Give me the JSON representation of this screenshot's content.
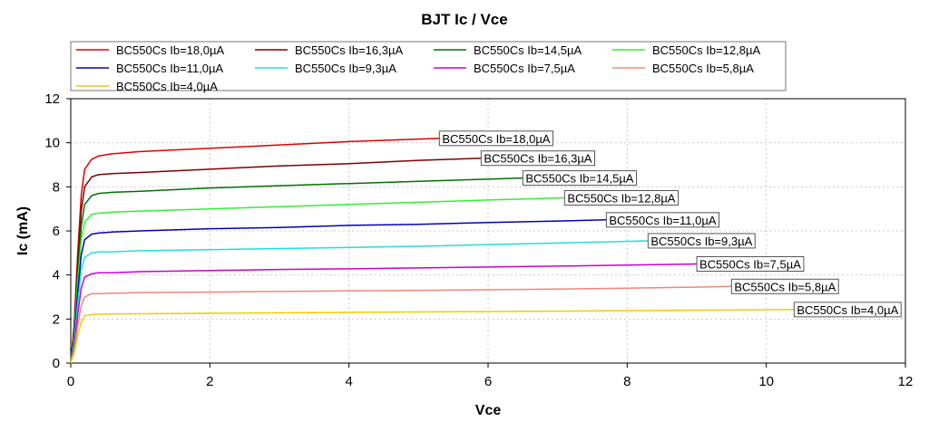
{
  "chart_data": {
    "type": "line",
    "title": "BJT Ic / Vce",
    "xlabel": "Vce",
    "ylabel": "Ic (mA)",
    "xlim": [
      0,
      12
    ],
    "ylim": [
      0,
      12
    ],
    "xticks": [
      "0",
      "2",
      "4",
      "6",
      "8",
      "10",
      "12"
    ],
    "yticks": [
      "0",
      "2",
      "4",
      "6",
      "8",
      "10",
      "12"
    ],
    "grid": true,
    "legend_position": "top",
    "series": [
      {
        "name": "BC550Cs Ib=18,0µA",
        "color": "#dd0000",
        "x": [
          0,
          0.05,
          0.1,
          0.15,
          0.2,
          0.3,
          0.4,
          0.6,
          1,
          2,
          3,
          4,
          5.3
        ],
        "y": [
          0,
          1.8,
          5.0,
          7.6,
          8.8,
          9.25,
          9.4,
          9.5,
          9.6,
          9.75,
          9.9,
          10.05,
          10.2
        ]
      },
      {
        "name": "BC550Cs Ib=16,3µA",
        "color": "#800000",
        "x": [
          0,
          0.05,
          0.1,
          0.15,
          0.2,
          0.3,
          0.4,
          0.6,
          1,
          2,
          3,
          4,
          5,
          5.9
        ],
        "y": [
          0,
          1.6,
          4.6,
          6.9,
          8.0,
          8.45,
          8.55,
          8.6,
          8.65,
          8.8,
          8.95,
          9.05,
          9.2,
          9.3
        ]
      },
      {
        "name": "BC550Cs Ib=14,5µA",
        "color": "#007000",
        "x": [
          0,
          0.05,
          0.1,
          0.15,
          0.2,
          0.3,
          0.4,
          0.6,
          1,
          2,
          3,
          4,
          5,
          6.5
        ],
        "y": [
          0,
          1.4,
          4.1,
          6.2,
          7.2,
          7.6,
          7.7,
          7.75,
          7.8,
          7.95,
          8.05,
          8.15,
          8.25,
          8.4
        ]
      },
      {
        "name": "BC550Cs Ib=12,8µA",
        "color": "#33ee33",
        "x": [
          0,
          0.05,
          0.1,
          0.15,
          0.2,
          0.3,
          0.4,
          0.6,
          1,
          2,
          3,
          4,
          5,
          6,
          7.1
        ],
        "y": [
          0,
          1.3,
          3.7,
          5.6,
          6.4,
          6.75,
          6.8,
          6.85,
          6.9,
          7.0,
          7.1,
          7.2,
          7.3,
          7.4,
          7.5
        ]
      },
      {
        "name": "BC550Cs Ib=11,0µA",
        "color": "#0000bb",
        "x": [
          0,
          0.05,
          0.1,
          0.15,
          0.2,
          0.3,
          0.4,
          0.6,
          1,
          2,
          3,
          4,
          5,
          6,
          7,
          7.7
        ],
        "y": [
          0,
          1.1,
          3.2,
          4.9,
          5.6,
          5.85,
          5.9,
          5.95,
          6.0,
          6.1,
          6.15,
          6.25,
          6.3,
          6.38,
          6.45,
          6.5
        ]
      },
      {
        "name": "BC550Cs Ib=9,3µA",
        "color": "#22dddd",
        "x": [
          0,
          0.05,
          0.1,
          0.15,
          0.2,
          0.3,
          0.4,
          0.6,
          1,
          2,
          3,
          4,
          5,
          6,
          7,
          8.3
        ],
        "y": [
          0,
          0.9,
          2.7,
          4.2,
          4.8,
          5.0,
          5.05,
          5.05,
          5.1,
          5.15,
          5.2,
          5.25,
          5.3,
          5.38,
          5.45,
          5.55
        ]
      },
      {
        "name": "BC550Cs Ib=7,5µA",
        "color": "#cc00cc",
        "x": [
          0,
          0.05,
          0.1,
          0.15,
          0.2,
          0.3,
          0.4,
          0.6,
          1,
          2,
          3,
          4,
          5,
          6,
          7,
          8,
          9
        ],
        "y": [
          0,
          0.7,
          2.2,
          3.4,
          3.9,
          4.05,
          4.1,
          4.1,
          4.15,
          4.2,
          4.25,
          4.28,
          4.32,
          4.36,
          4.4,
          4.45,
          4.5
        ]
      },
      {
        "name": "BC550Cs Ib=5,8µA",
        "color": "#ee8877",
        "x": [
          0,
          0.05,
          0.1,
          0.15,
          0.2,
          0.3,
          0.4,
          0.6,
          1,
          2,
          3,
          4,
          5,
          6,
          7,
          8,
          9,
          9.5
        ],
        "y": [
          0,
          0.6,
          1.7,
          2.6,
          3.0,
          3.15,
          3.15,
          3.17,
          3.2,
          3.22,
          3.25,
          3.28,
          3.3,
          3.33,
          3.36,
          3.4,
          3.45,
          3.48
        ]
      },
      {
        "name": "BC550Cs Ib=4,0µA",
        "color": "#eecc00",
        "x": [
          0,
          0.05,
          0.1,
          0.15,
          0.2,
          0.3,
          0.4,
          0.6,
          1,
          2,
          3,
          4,
          5,
          6,
          7,
          8,
          9,
          10,
          10.4
        ],
        "y": [
          0,
          0.45,
          1.25,
          1.85,
          2.15,
          2.2,
          2.22,
          2.23,
          2.24,
          2.26,
          2.28,
          2.3,
          2.32,
          2.34,
          2.36,
          2.38,
          2.4,
          2.42,
          2.43
        ]
      }
    ]
  }
}
